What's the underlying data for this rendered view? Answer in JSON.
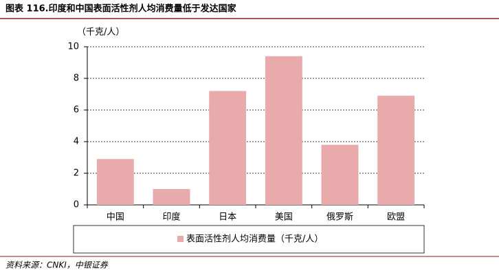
{
  "chart_data": {
    "type": "bar",
    "title": "图表 116.印度和中国表面活性剂人均消费量低于发达国家",
    "y_axis_label": "（千克/人）",
    "source": "资料来源：CNKI，中银证券",
    "categories": [
      "中国",
      "印度",
      "日本",
      "美国",
      "俄罗斯",
      "欧盟"
    ],
    "series": [
      {
        "name": "表面活性剂人均消费量（千克/人）",
        "color": "#e8aaaa",
        "values": [
          2.9,
          1.0,
          7.2,
          9.4,
          3.8,
          6.9
        ]
      }
    ],
    "ylim": [
      0,
      10
    ],
    "yticks": [
      0,
      2,
      4,
      6,
      8,
      10
    ],
    "grid": true,
    "legend": "bottom"
  }
}
